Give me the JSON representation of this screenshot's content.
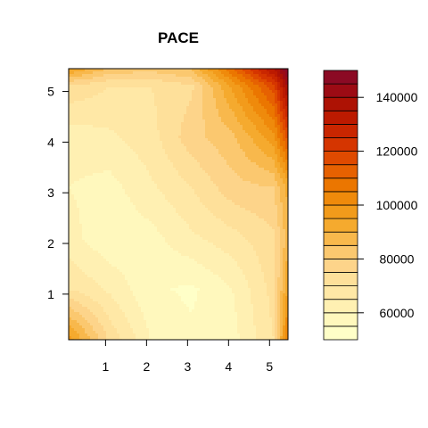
{
  "chart_data": {
    "type": "heatmap",
    "title": "PACE",
    "xlabel": "",
    "ylabel": "",
    "xlim": [
      0.1,
      5.45
    ],
    "ylim": [
      0.1,
      5.45
    ],
    "x_ticks": [
      "1",
      "2",
      "3",
      "4",
      "5"
    ],
    "y_ticks": [
      "1",
      "2",
      "3",
      "4",
      "5"
    ],
    "grid_x": [
      0.1,
      1.1,
      2.1,
      3.1,
      4.1,
      5.1,
      5.45
    ],
    "grid_y": [
      0.1,
      1.1,
      2.1,
      3.1,
      4.1,
      5.1,
      5.45
    ],
    "z": [
      [
        98000,
        74000,
        60000,
        56000,
        58000,
        70000,
        108000
      ],
      [
        70000,
        64000,
        56000,
        54000,
        60000,
        72000,
        96000
      ],
      [
        62000,
        56000,
        58000,
        64000,
        68000,
        74000,
        88000
      ],
      [
        60000,
        58000,
        64000,
        70000,
        78000,
        80000,
        92000
      ],
      [
        62000,
        64000,
        68000,
        78000,
        84000,
        98000,
        118000
      ],
      [
        74000,
        70000,
        70000,
        74000,
        96000,
        118000,
        142000
      ],
      [
        96000,
        84000,
        82000,
        86000,
        110000,
        136000,
        150000
      ]
    ],
    "levels": [
      50000,
      55000,
      60000,
      65000,
      70000,
      75000,
      80000,
      85000,
      90000,
      95000,
      100000,
      105000,
      110000,
      115000,
      120000,
      125000,
      130000,
      135000,
      140000,
      145000,
      150000
    ],
    "colors": [
      "#FFFFC8",
      "#FFF8BD",
      "#FFF0B2",
      "#FFE8A6",
      "#FEE09A",
      "#FDD48A",
      "#FBC86F",
      "#F8B84C",
      "#F5AA2E",
      "#F29B1B",
      "#EF8A0B",
      "#EB7600",
      "#E66101",
      "#DF4A00",
      "#D53500",
      "#C92600",
      "#BC1A00",
      "#AD1204",
      "#9C0B14",
      "#8B0A24"
    ],
    "legend": {
      "position": "right",
      "tick_values": [
        60000,
        80000,
        100000,
        120000,
        140000
      ],
      "tick_labels": [
        "60000",
        "80000",
        "100000",
        "120000",
        "140000"
      ]
    },
    "grid": false
  }
}
